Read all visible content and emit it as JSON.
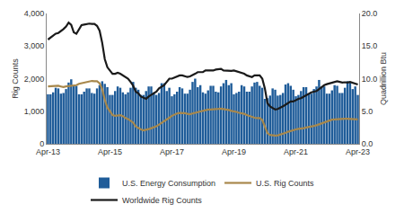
{
  "chart_data": {
    "type": "combo",
    "categories": [
      "Apr-13",
      null,
      null,
      null,
      null,
      null,
      null,
      null,
      null,
      null,
      null,
      null,
      null,
      null,
      null,
      null,
      null,
      null,
      null,
      null,
      null,
      null,
      null,
      null,
      "Apr-15",
      null,
      null,
      null,
      null,
      null,
      null,
      null,
      null,
      null,
      null,
      null,
      null,
      null,
      null,
      null,
      null,
      null,
      null,
      null,
      null,
      null,
      null,
      null,
      "Apr-17",
      null,
      null,
      null,
      null,
      null,
      null,
      null,
      null,
      null,
      null,
      null,
      null,
      null,
      null,
      null,
      null,
      null,
      null,
      null,
      null,
      null,
      null,
      null,
      "Apr-19",
      null,
      null,
      null,
      null,
      null,
      null,
      null,
      null,
      null,
      null,
      null,
      null,
      null,
      null,
      null,
      null,
      null,
      null,
      null,
      null,
      null,
      null,
      null,
      "Apr-21",
      null,
      null,
      null,
      null,
      null,
      null,
      null,
      null,
      null,
      null,
      null,
      null,
      null,
      null,
      null,
      null,
      null,
      null,
      null,
      null,
      null,
      null,
      null,
      "Apr-23"
    ],
    "y_label": "Rig Counts",
    "y2_label": "Quadrillion Btu",
    "ylim": [
      0,
      4000
    ],
    "yticks": [
      0,
      {
        "value": 1000,
        "label": "1,000"
      },
      {
        "value": 2000,
        "label": "2,000"
      },
      {
        "value": 3000,
        "label": "3,000"
      },
      {
        "value": 4000,
        "label": "4,000"
      }
    ],
    "y2lim": [
      0,
      20
    ],
    "y2ticks": [
      {
        "value": 0,
        "label": "0.0"
      },
      {
        "value": 5,
        "label": "5.0"
      },
      {
        "value": 10,
        "label": "10.0"
      },
      {
        "value": 15,
        "label": "15.0"
      },
      {
        "value": 20,
        "label": "20.0"
      }
    ],
    "grid": false,
    "legend": "bottom",
    "series": [
      {
        "name": "U.S. Energy Consumption",
        "type": "bar",
        "axis": "y2",
        "color": "#1f5c99",
        "values": [
          7.6,
          7.6,
          7.9,
          8.6,
          8.5,
          7.7,
          7.8,
          8.4,
          9.4,
          9.9,
          8.9,
          8.9,
          7.6,
          7.6,
          8.0,
          8.5,
          8.5,
          7.8,
          7.7,
          8.5,
          9.0,
          9.6,
          9.2,
          8.7,
          7.5,
          7.5,
          8.1,
          8.8,
          8.6,
          7.9,
          7.6,
          7.9,
          8.6,
          9.5,
          8.6,
          8.3,
          7.5,
          7.5,
          8.1,
          8.8,
          8.8,
          7.9,
          7.5,
          7.8,
          9.3,
          9.3,
          8.1,
          8.6,
          7.3,
          7.6,
          8.0,
          8.7,
          8.5,
          7.7,
          7.7,
          8.3,
          9.5,
          10.0,
          8.7,
          9.0,
          7.9,
          7.7,
          8.2,
          8.9,
          8.9,
          8.0,
          7.9,
          8.8,
          9.3,
          9.8,
          9.0,
          9.3,
          7.6,
          7.8,
          8.0,
          9.0,
          8.8,
          8.0,
          8.0,
          8.8,
          9.4,
          9.5,
          8.9,
          8.6,
          6.9,
          7.0,
          7.4,
          8.5,
          8.3,
          7.4,
          7.5,
          7.8,
          9.1,
          9.3,
          8.9,
          8.3,
          7.3,
          7.5,
          8.1,
          8.7,
          8.7,
          7.7,
          7.7,
          8.4,
          8.8,
          9.8,
          8.8,
          8.8,
          7.7,
          7.7,
          8.2,
          9.0,
          8.9,
          7.8,
          7.8,
          8.6,
          9.6,
          9.4,
          8.4,
          8.8,
          7.5
        ]
      },
      {
        "name": "U.S. Rig Counts",
        "type": "line",
        "color": "#a8884c",
        "values": [
          1760,
          1770,
          1760,
          1770,
          1780,
          1760,
          1740,
          1760,
          1770,
          1770,
          1770,
          1800,
          1840,
          1860,
          1860,
          1880,
          1900,
          1930,
          1920,
          1920,
          1860,
          1680,
          1350,
          1110,
          1000,
          880,
          860,
          870,
          880,
          850,
          790,
          760,
          700,
          650,
          530,
          480,
          440,
          410,
          420,
          450,
          480,
          500,
          540,
          590,
          640,
          680,
          750,
          800,
          860,
          900,
          930,
          950,
          950,
          940,
          920,
          910,
          930,
          950,
          970,
          990,
          1000,
          1040,
          1050,
          1050,
          1050,
          1060,
          1070,
          1080,
          1070,
          1050,
          1040,
          1010,
          1000,
          980,
          950,
          940,
          920,
          880,
          850,
          810,
          800,
          790,
          790,
          730,
          530,
          330,
          270,
          250,
          250,
          260,
          280,
          320,
          340,
          370,
          400,
          410,
          440,
          460,
          460,
          480,
          500,
          510,
          530,
          550,
          570,
          600,
          640,
          670,
          690,
          720,
          740,
          750,
          760,
          760,
          770,
          770,
          770,
          760,
          760,
          750,
          750
        ]
      },
      {
        "name": "Worldwide Rig Counts",
        "type": "line",
        "color": "#1a1a1a",
        "values": [
          3200,
          3260,
          3320,
          3380,
          3400,
          3450,
          3520,
          3600,
          3720,
          3650,
          3420,
          3380,
          3500,
          3640,
          3660,
          3680,
          3690,
          3680,
          3680,
          3620,
          3470,
          3100,
          2600,
          2350,
          2250,
          2150,
          2150,
          2180,
          2150,
          2100,
          2050,
          2000,
          1900,
          1780,
          1600,
          1550,
          1450,
          1420,
          1380,
          1450,
          1500,
          1550,
          1600,
          1700,
          1750,
          1800,
          1900,
          2000,
          2000,
          2030,
          2080,
          2100,
          2100,
          2080,
          2050,
          2070,
          2100,
          2150,
          2200,
          2200,
          2200,
          2250,
          2250,
          2230,
          2250,
          2280,
          2300,
          2300,
          2250,
          2240,
          2230,
          2240,
          2250,
          2230,
          2200,
          2180,
          2150,
          2100,
          2080,
          2050,
          2100,
          2100,
          2100,
          2000,
          1700,
          1250,
          1150,
          1100,
          1050,
          1070,
          1100,
          1150,
          1200,
          1250,
          1300,
          1300,
          1350,
          1380,
          1400,
          1450,
          1500,
          1550,
          1580,
          1600,
          1620,
          1680,
          1750,
          1800,
          1830,
          1850,
          1880,
          1900,
          1920,
          1900,
          1880,
          1890,
          1880,
          1900,
          1880,
          1850,
          1820
        ]
      }
    ]
  }
}
